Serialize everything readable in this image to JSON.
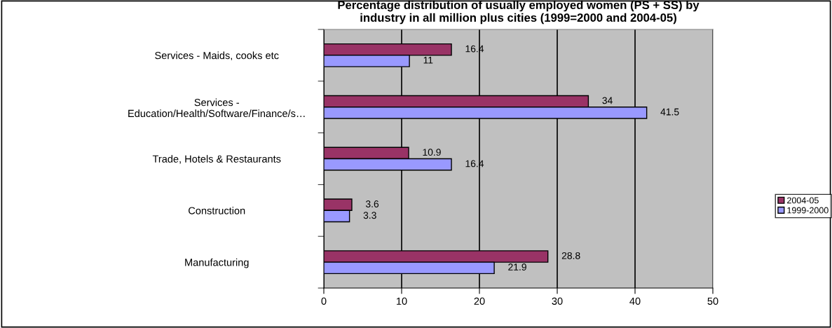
{
  "chart_data": {
    "type": "bar",
    "orientation": "horizontal",
    "title": "Percentage distribution of usually employed women (PS + SS) by\nindustry in all million plus cities (1999=2000 and 2004-05)",
    "categories": [
      "Services - Maids, cooks etc",
      "Services -\nEducation/Health/Software/Finance/s…",
      "Trade, Hotels & Restaurants",
      "Construction",
      "Manufacturing"
    ],
    "series": [
      {
        "name": "2004-05",
        "color": "#993366",
        "values": [
          16.4,
          34,
          10.9,
          3.6,
          28.8
        ]
      },
      {
        "name": "1999-2000",
        "color": "#9999ff",
        "values": [
          11,
          41.5,
          16.4,
          3.3,
          21.9
        ]
      }
    ],
    "xlim": [
      0,
      50
    ],
    "xticks": [
      0,
      10,
      20,
      30,
      40,
      50
    ],
    "grid": "x",
    "legend": "right",
    "data_labels": true
  }
}
